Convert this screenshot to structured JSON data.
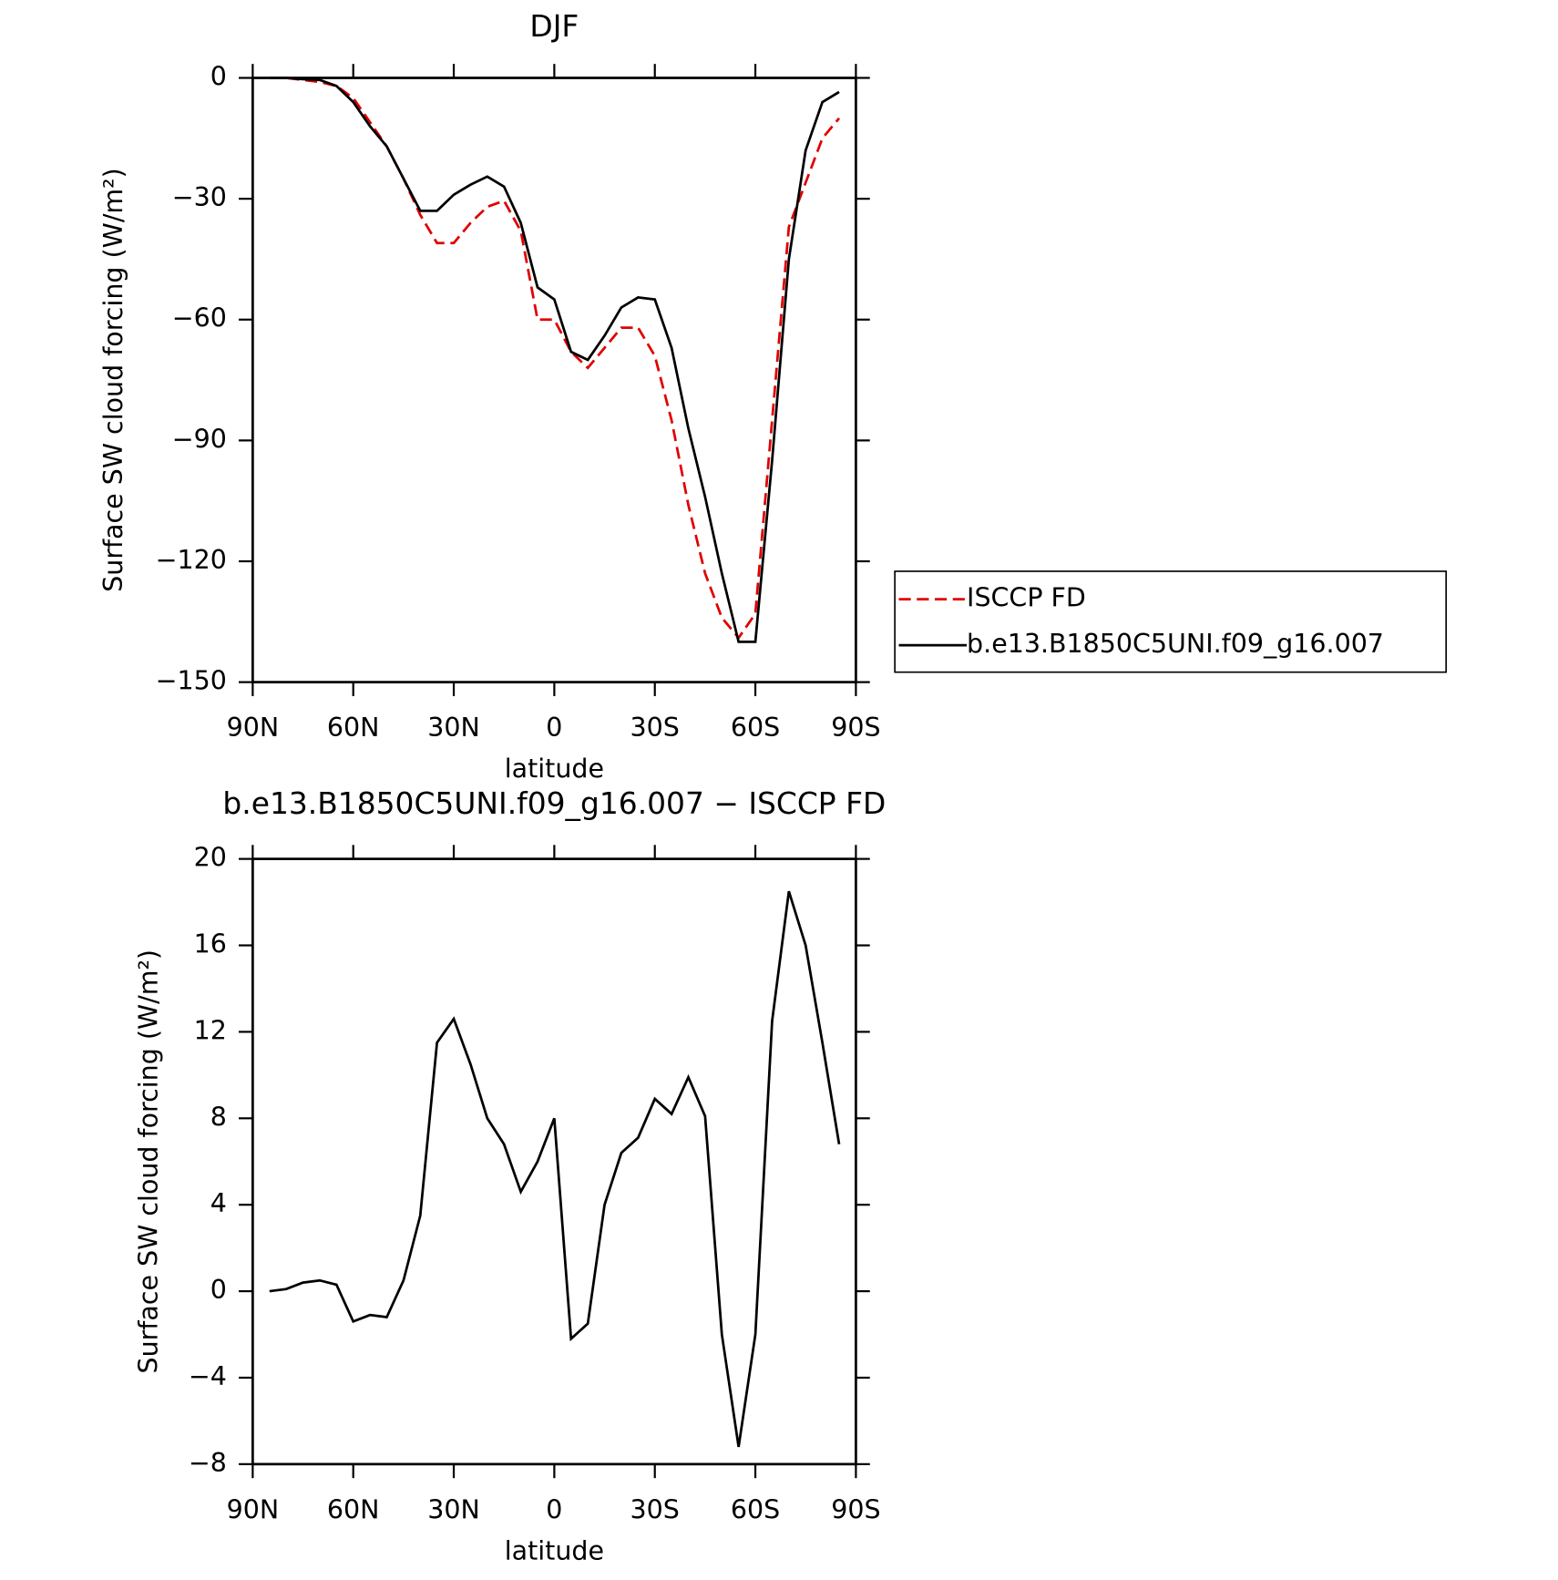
{
  "chart_data": [
    {
      "type": "line",
      "title": "DJF",
      "xlabel": "latitude",
      "ylabel": "Surface SW cloud forcing (W/m²)",
      "x": [
        85,
        80,
        75,
        70,
        65,
        60,
        55,
        50,
        45,
        40,
        35,
        30,
        25,
        20,
        15,
        10,
        5,
        0,
        -5,
        -10,
        -15,
        -20,
        -25,
        -30,
        -35,
        -40,
        -45,
        -50,
        -55,
        -60,
        -65,
        -70,
        -75,
        -80,
        -85
      ],
      "series": [
        {
          "name": "ISCCP FD",
          "color": "#e00000",
          "dash": true,
          "values": [
            0,
            0,
            -0.5,
            -1,
            -2,
            -5,
            -11,
            -17,
            -25,
            -34,
            -41,
            -41,
            -36,
            -32,
            -30.5,
            -38,
            -60,
            -60,
            -68,
            -72,
            -67,
            -62,
            -62,
            -69,
            -85,
            -106,
            -123,
            -134,
            -139,
            -133,
            -85,
            -37,
            -26,
            -15,
            -10
          ]
        },
        {
          "name": "b.e13.B1850C5UNI.f09_g16.007",
          "color": "#000000",
          "dash": false,
          "values": [
            0,
            0,
            -0.3,
            -0.5,
            -2,
            -6,
            -12,
            -17,
            -25,
            -33,
            -33,
            -29,
            -26.5,
            -24.5,
            -27,
            -36,
            -52,
            -55,
            -68,
            -70,
            -64,
            -57,
            -54.5,
            -55,
            -67,
            -87,
            -104,
            -123,
            -140,
            -140,
            -95,
            -45,
            -18,
            -6,
            -3.5
          ]
        }
      ],
      "xlim": [
        90,
        -90
      ],
      "xticks": [
        {
          "value": 90,
          "label": "90N"
        },
        {
          "value": 60,
          "label": "60N"
        },
        {
          "value": 30,
          "label": "30N"
        },
        0,
        {
          "value": -30,
          "label": "30S"
        },
        {
          "value": -60,
          "label": "60S"
        },
        {
          "value": -90,
          "label": "90S"
        }
      ],
      "ylim": [
        -150,
        0
      ],
      "yticks": [
        0,
        {
          "value": -30,
          "label": "−30"
        },
        {
          "value": -60,
          "label": "−60"
        },
        {
          "value": -90,
          "label": "−90"
        },
        {
          "value": -120,
          "label": "−120"
        },
        {
          "value": -150,
          "label": "−150"
        }
      ],
      "legend": true
    },
    {
      "type": "line",
      "title": "b.e13.B1850C5UNI.f09_g16.007 − ISCCP FD",
      "xlabel": "latitude",
      "ylabel": "Surface SW cloud forcing (W/m²)",
      "x": [
        85,
        80,
        75,
        70,
        65,
        60,
        55,
        50,
        45,
        40,
        35,
        30,
        25,
        20,
        15,
        10,
        5,
        0,
        -5,
        -10,
        -15,
        -20,
        -25,
        -30,
        -35,
        -40,
        -45,
        -50,
        -55,
        -60,
        -65,
        -70,
        -75,
        -80,
        -85
      ],
      "series": [
        {
          "color": "#000000",
          "dash": false,
          "values": [
            0,
            0.1,
            0.4,
            0.5,
            0.3,
            -1.4,
            -1.1,
            -1.2,
            0.5,
            3.5,
            11.5,
            12.6,
            10.5,
            8,
            6.8,
            4.6,
            6,
            8,
            -2.2,
            -1.5,
            4,
            6.4,
            7.1,
            8.9,
            8.2,
            9.9,
            8.1,
            -2,
            -7.2,
            -2,
            12.5,
            18.5,
            16,
            11.5,
            6.8
          ]
        }
      ],
      "xlim": [
        90,
        -90
      ],
      "xticks": [
        {
          "value": 90,
          "label": "90N"
        },
        {
          "value": 60,
          "label": "60N"
        },
        {
          "value": 30,
          "label": "30N"
        },
        0,
        {
          "value": -30,
          "label": "30S"
        },
        {
          "value": -60,
          "label": "60S"
        },
        {
          "value": -90,
          "label": "90S"
        }
      ],
      "ylim": [
        -8,
        20
      ],
      "yticks": [
        20,
        16,
        12,
        8,
        4,
        0,
        {
          "value": -4,
          "label": "−4"
        },
        {
          "value": -8,
          "label": "−8"
        }
      ],
      "legend": false
    }
  ]
}
